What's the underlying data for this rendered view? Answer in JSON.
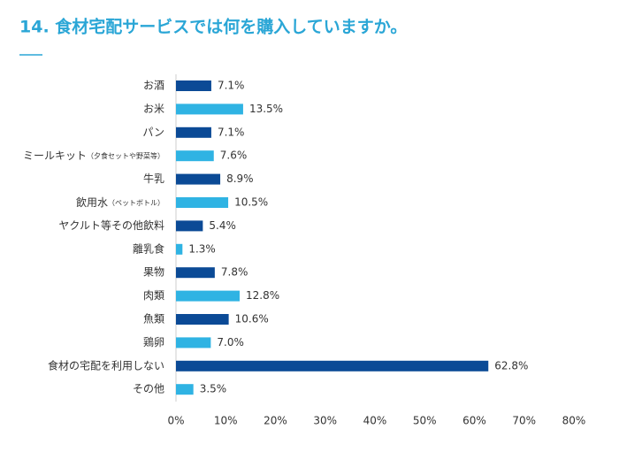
{
  "chart_data": {
    "type": "barh",
    "title": "14. 食材宅配サービスでは何を購入していますか。",
    "categories": [
      "お酒",
      "お米",
      "パン",
      "ミールキット（夕食セットや野菜等）",
      "牛乳",
      "飲用水（ペットボトル）",
      "ヤクルト等その他飲料",
      "離乳食",
      "果物",
      "肉類",
      "魚類",
      "鶏卵",
      "食材の宅配を利用しない",
      "その他"
    ],
    "values": [
      7.1,
      13.5,
      7.1,
      7.6,
      8.9,
      10.5,
      5.4,
      1.3,
      7.8,
      12.8,
      10.6,
      7.0,
      62.8,
      3.5
    ],
    "value_labels": [
      "7.1%",
      "13.5%",
      "7.1%",
      "7.6%",
      "8.9%",
      "10.5%",
      "5.4%",
      "1.3%",
      "7.8%",
      "12.8%",
      "10.6%",
      "7.0%",
      "62.8%",
      "3.5%"
    ],
    "colors": [
      "#0b4a96",
      "#2fb3e3",
      "#0b4a96",
      "#2fb3e3",
      "#0b4a96",
      "#2fb3e3",
      "#0b4a96",
      "#2fb3e3",
      "#0b4a96",
      "#2fb3e3",
      "#0b4a96",
      "#2fb3e3",
      "#0b4a96",
      "#2fb3e3"
    ],
    "xlim": [
      0,
      80
    ],
    "xticks": [
      {
        "value": 0,
        "label": "0%"
      },
      {
        "value": 10,
        "label": "10%"
      },
      {
        "value": 20,
        "label": "20%"
      },
      {
        "value": 30,
        "label": "30%"
      },
      {
        "value": 40,
        "label": "40%"
      },
      {
        "value": 50,
        "label": "50%"
      },
      {
        "value": 60,
        "label": "60%"
      },
      {
        "value": 70,
        "label": "70%"
      },
      {
        "value": 80,
        "label": "80%"
      }
    ]
  }
}
